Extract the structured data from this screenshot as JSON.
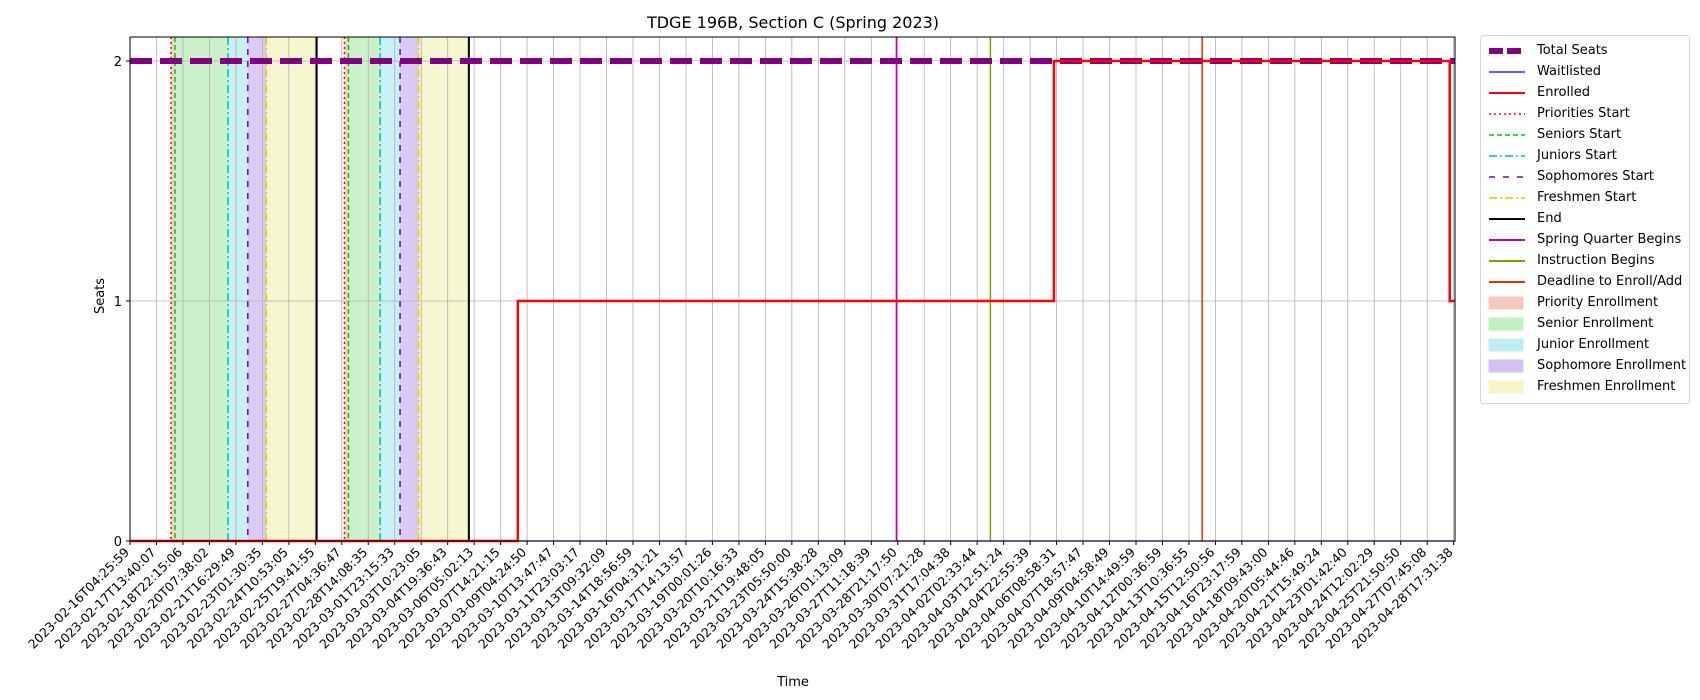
{
  "chart_data": {
    "type": "line",
    "title": "TDGE 196B, Section C (Spring 2023)",
    "xlabel": "Time",
    "ylabel": "Seats",
    "ylim": [
      0,
      2.1
    ],
    "yticks": [
      0,
      1,
      2
    ],
    "grid": true,
    "legend_placement": "outside-right",
    "x_tick_labels": [
      "2023-02-16T04:25:59",
      "2023-02-17T13:40:07",
      "2023-02-18T22:15:06",
      "2023-02-20T07:38:02",
      "2023-02-21T16:29:49",
      "2023-02-23T01:30:35",
      "2023-02-24T10:53:05",
      "2023-02-25T19:41:55",
      "2023-02-27T04:36:47",
      "2023-02-28T14:08:35",
      "2023-03-01T23:15:33",
      "2023-03-03T10:23:05",
      "2023-03-04T19:36:43",
      "2023-03-06T05:02:13",
      "2023-03-07T14:21:15",
      "2023-03-09T04:24:50",
      "2023-03-10T13:47:47",
      "2023-03-11T23:03:17",
      "2023-03-13T09:32:09",
      "2023-03-14T18:56:59",
      "2023-03-16T04:31:21",
      "2023-03-17T14:13:57",
      "2023-03-19T00:01:26",
      "2023-03-20T10:16:33",
      "2023-03-21T19:48:05",
      "2023-03-23T05:50:00",
      "2023-03-24T15:38:28",
      "2023-03-26T01:13:09",
      "2023-03-27T11:18:39",
      "2023-03-28T21:17:50",
      "2023-03-30T07:21:28",
      "2023-03-31T17:04:38",
      "2023-04-02T02:33:44",
      "2023-04-03T12:51:24",
      "2023-04-04T22:55:39",
      "2023-04-06T08:58:31",
      "2023-04-07T18:57:47",
      "2023-04-09T04:58:49",
      "2023-04-10T14:49:59",
      "2023-04-12T00:36:59",
      "2023-04-13T10:36:55",
      "2023-04-15T12:50:56",
      "2023-04-16T23:17:59",
      "2023-04-18T09:43:00",
      "2023-04-20T05:44:46",
      "2023-04-21T15:49:24",
      "2023-04-23T01:42:40",
      "2023-04-24T12:02:29",
      "2023-04-25T21:50:50",
      "2023-04-27T07:45:08",
      "2023-04-28T17:31:38"
    ],
    "x_range_index": [
      0,
      50.05
    ],
    "series": [
      {
        "name": "Total Seats",
        "x": [
          0,
          50.05
        ],
        "y": [
          2,
          2
        ]
      },
      {
        "name": "Waitlisted",
        "x": [
          0,
          50.05
        ],
        "y": [
          0,
          0
        ]
      },
      {
        "name": "Enrolled",
        "x": [
          0,
          14.65,
          14.65,
          34.9,
          34.9,
          49.85,
          49.85,
          50.05
        ],
        "y": [
          0,
          0,
          1,
          1,
          2,
          2,
          1,
          1
        ]
      }
    ],
    "vertical_lines": [
      {
        "name": "Priorities Start",
        "x": [
          1.55,
          8.1
        ]
      },
      {
        "name": "Seniors Start",
        "x": [
          1.7,
          8.25
        ]
      },
      {
        "name": "Juniors Start",
        "x": [
          3.7,
          9.45
        ]
      },
      {
        "name": "Sophomores Start",
        "x": [
          4.45,
          10.2
        ]
      },
      {
        "name": "Freshmen Start",
        "x": [
          5.15,
          10.9
        ]
      },
      {
        "name": "End",
        "x": [
          7.05,
          12.8
        ]
      },
      {
        "name": "Spring Quarter Begins",
        "x": [
          28.95
        ]
      },
      {
        "name": "Instruction Begins",
        "x": [
          32.5
        ]
      },
      {
        "name": "Deadline to Enroll/Add",
        "x": [
          40.5
        ]
      }
    ],
    "spans": [
      {
        "name": "Priority Enrollment",
        "ranges": [
          [
            1.55,
            1.7
          ],
          [
            8.1,
            8.25
          ]
        ]
      },
      {
        "name": "Senior Enrollment",
        "ranges": [
          [
            1.7,
            3.7
          ],
          [
            8.25,
            9.45
          ]
        ]
      },
      {
        "name": "Junior Enrollment",
        "ranges": [
          [
            3.7,
            4.45
          ],
          [
            9.45,
            10.2
          ]
        ]
      },
      {
        "name": "Sophomore Enrollment",
        "ranges": [
          [
            4.45,
            5.15
          ],
          [
            10.2,
            10.9
          ]
        ]
      },
      {
        "name": "Freshmen Enrollment",
        "ranges": [
          [
            5.15,
            7.05
          ],
          [
            10.9,
            12.8
          ]
        ]
      }
    ]
  },
  "legend": [
    {
      "label": "Total Seats",
      "kind": "line",
      "color": "#800080",
      "style": "dashed-thick"
    },
    {
      "label": "Waitlisted",
      "kind": "line",
      "color": "#0000ff",
      "style": "solid-thin"
    },
    {
      "label": "Enrolled",
      "kind": "line",
      "color": "#ff0000",
      "style": "solid"
    },
    {
      "label": "Priorities Start",
      "kind": "line",
      "color": "#ff0000",
      "style": "dotted"
    },
    {
      "label": "Seniors Start",
      "kind": "line",
      "color": "#00cc00",
      "style": "dashed"
    },
    {
      "label": "Juniors Start",
      "kind": "line",
      "color": "#00bfbf",
      "style": "dashdot"
    },
    {
      "label": "Sophomores Start",
      "kind": "line",
      "color": "#6a00d4",
      "style": "loosedash"
    },
    {
      "label": "Freshmen Start",
      "kind": "line",
      "color": "#e6c800",
      "style": "dashdot"
    },
    {
      "label": "End",
      "kind": "line",
      "color": "#000000",
      "style": "solid"
    },
    {
      "label": "Spring Quarter Begins",
      "kind": "line",
      "color": "#c000c0",
      "style": "solid"
    },
    {
      "label": "Instruction Begins",
      "kind": "line",
      "color": "#77a300",
      "style": "solid"
    },
    {
      "label": "Deadline to Enroll/Add",
      "kind": "line",
      "color": "#e03000",
      "style": "solid"
    },
    {
      "label": "Priority Enrollment",
      "kind": "patch",
      "color": "#f4c9bd"
    },
    {
      "label": "Senior Enrollment",
      "kind": "patch",
      "color": "#c2efc2"
    },
    {
      "label": "Junior Enrollment",
      "kind": "patch",
      "color": "#bdeff2"
    },
    {
      "label": "Sophomore Enrollment",
      "kind": "patch",
      "color": "#d2c2f2"
    },
    {
      "label": "Freshmen Enrollment",
      "kind": "patch",
      "color": "#f5f5c8"
    }
  ]
}
